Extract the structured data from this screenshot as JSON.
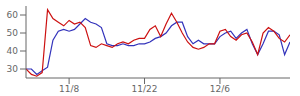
{
  "chart_data": {
    "type": "line",
    "x": [
      0,
      1,
      2,
      3,
      4,
      5,
      6,
      7,
      8,
      9,
      10,
      11,
      12,
      13,
      14,
      15,
      16,
      17,
      18,
      19,
      20,
      21,
      22,
      23,
      24,
      25,
      26,
      27,
      28,
      29,
      30,
      31,
      32,
      33,
      34,
      35,
      36,
      37,
      38,
      39,
      40,
      41,
      42,
      43,
      44,
      45,
      46,
      47,
      48,
      49
    ],
    "series": [
      {
        "color": "#cc1111",
        "values": [
          30,
          27,
          26,
          28,
          63,
          58,
          56,
          54,
          57,
          55,
          56,
          53,
          43,
          42,
          44,
          43,
          42,
          44,
          45,
          44,
          46,
          47,
          47,
          52,
          54,
          48,
          55,
          61,
          56,
          50,
          45,
          42,
          41,
          42,
          44,
          44,
          51,
          52,
          48,
          46,
          49,
          50,
          45,
          38,
          50,
          53,
          51,
          47,
          45,
          49
        ]
      },
      {
        "color": "#3333bb",
        "values": [
          30,
          30,
          27,
          29,
          31,
          46,
          51,
          52,
          51,
          52,
          55,
          58,
          56,
          55,
          53,
          44,
          43,
          43,
          44,
          43,
          43,
          44,
          44,
          45,
          47,
          48,
          50,
          54,
          56,
          56,
          48,
          44,
          46,
          44,
          44,
          44,
          48,
          50,
          51,
          47,
          50,
          52,
          44,
          38,
          44,
          51,
          51,
          49,
          38,
          45
        ]
      }
    ],
    "xlim": [
      0,
      49
    ],
    "xticks": [
      {
        "value": 8,
        "label": "11/8"
      },
      {
        "value": 22,
        "label": "11/22"
      },
      {
        "value": 36,
        "label": "12/6"
      }
    ],
    "ylim": [
      25,
      65
    ],
    "yticks": [
      30,
      40,
      50,
      60
    ],
    "grid": false
  }
}
